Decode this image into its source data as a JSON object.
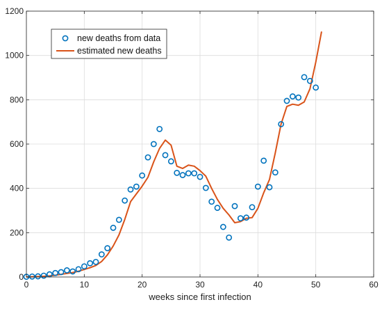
{
  "chart_data": {
    "type": "line",
    "xlabel": "weeks since first infection",
    "ylabel": "",
    "title": "",
    "xlim": [
      0,
      60
    ],
    "ylim": [
      0,
      1200
    ],
    "xticks": [
      0,
      10,
      20,
      30,
      40,
      50,
      60
    ],
    "yticks": [
      0,
      200,
      400,
      600,
      800,
      1000,
      1200
    ],
    "grid": true,
    "legend_position": "top-left",
    "series": [
      {
        "name": "new deaths from data",
        "style": "markers",
        "marker": "circle",
        "color": "#0072BD",
        "x": [
          0,
          1,
          2,
          3,
          4,
          5,
          6,
          7,
          8,
          9,
          10,
          11,
          12,
          13,
          14,
          15,
          16,
          17,
          18,
          19,
          20,
          21,
          22,
          23,
          24,
          25,
          26,
          27,
          28,
          29,
          30,
          31,
          32,
          33,
          34,
          35,
          36,
          37,
          38,
          39,
          40,
          41,
          42,
          43,
          44,
          45,
          46,
          47,
          48,
          49,
          50
        ],
        "y": [
          1,
          2,
          3,
          6,
          12,
          18,
          22,
          30,
          25,
          35,
          48,
          62,
          68,
          102,
          130,
          222,
          258,
          345,
          395,
          408,
          458,
          540,
          600,
          668,
          550,
          522,
          470,
          460,
          468,
          468,
          452,
          402,
          340,
          312,
          226,
          178,
          320,
          265,
          268,
          315,
          408,
          525,
          405,
          472,
          690,
          795,
          815,
          810,
          902,
          885,
          855
        ]
      },
      {
        "name": "estimated new deaths",
        "style": "line",
        "color": "#D95319",
        "x": [
          0,
          1,
          2,
          3,
          4,
          5,
          6,
          7,
          8,
          9,
          10,
          11,
          12,
          13,
          14,
          15,
          16,
          17,
          18,
          19,
          20,
          21,
          22,
          23,
          24,
          25,
          26,
          27,
          28,
          29,
          30,
          31,
          32,
          33,
          34,
          35,
          36,
          37,
          38,
          39,
          40,
          41,
          42,
          43,
          44,
          45,
          46,
          47,
          48,
          49,
          50,
          51
        ],
        "y": [
          0,
          1,
          2,
          3,
          5,
          8,
          12,
          16,
          20,
          26,
          34,
          42,
          52,
          70,
          100,
          140,
          190,
          260,
          340,
          375,
          410,
          450,
          520,
          580,
          618,
          595,
          500,
          490,
          505,
          500,
          480,
          455,
          400,
          350,
          310,
          280,
          245,
          250,
          265,
          268,
          310,
          380,
          440,
          560,
          690,
          770,
          780,
          775,
          790,
          850,
          970,
          1108
        ]
      }
    ]
  }
}
